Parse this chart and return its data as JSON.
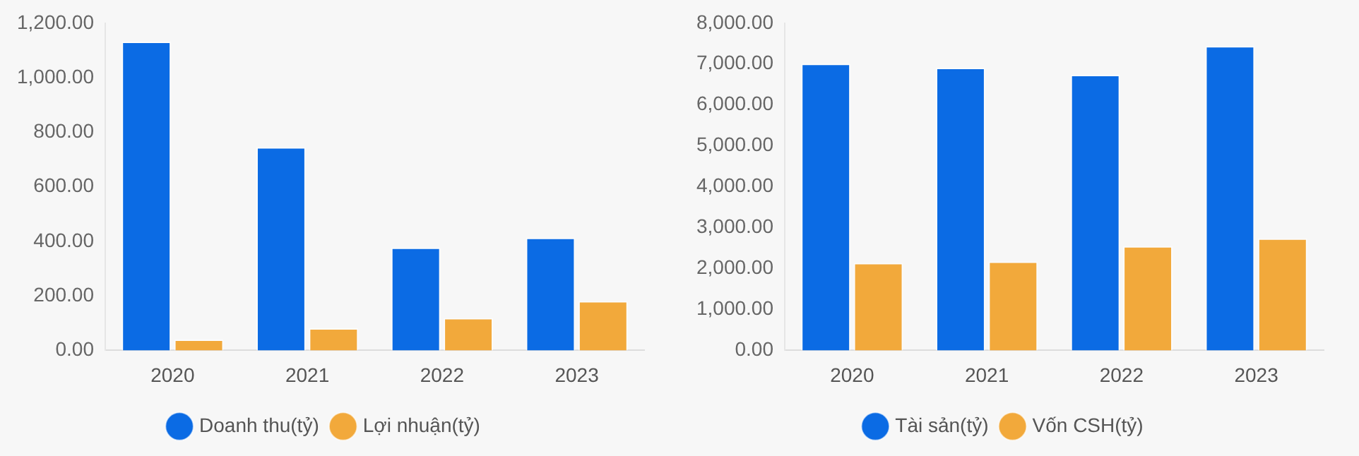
{
  "chart_data": [
    {
      "type": "bar",
      "categories": [
        "2020",
        "2021",
        "2022",
        "2023"
      ],
      "series": [
        {
          "name": "Doanh thu(tỷ)",
          "color": "#0b6be4",
          "values": [
            1132,
            745,
            377,
            413
          ]
        },
        {
          "name": "Lợi nhuận(tỷ)",
          "color": "#f2a93b",
          "values": [
            40,
            81,
            119,
            181
          ]
        }
      ],
      "ylim": [
        0,
        1200
      ],
      "yticks": [
        {
          "value": 0,
          "label": "0.00"
        },
        {
          "value": 200,
          "label": "200.00"
        },
        {
          "value": 400,
          "label": "400.00"
        },
        {
          "value": 600,
          "label": "600.00"
        },
        {
          "value": 800,
          "label": "800.00"
        },
        {
          "value": 1000,
          "label": "1,000.00"
        },
        {
          "value": 1200,
          "label": "1,200.00"
        }
      ],
      "grid": false,
      "legend": "bottom"
    },
    {
      "type": "bar",
      "categories": [
        "2020",
        "2021",
        "2022",
        "2023"
      ],
      "series": [
        {
          "name": "Tài sản(tỷ)",
          "color": "#0b6be4",
          "values": [
            7010,
            6910,
            6735,
            7440
          ]
        },
        {
          "name": "Vốn CSH(tỷ)",
          "color": "#f2a93b",
          "values": [
            2136,
            2173,
            2550,
            2739
          ]
        }
      ],
      "ylim": [
        0,
        8000
      ],
      "yticks": [
        {
          "value": 0,
          "label": "0.00"
        },
        {
          "value": 1000,
          "label": "1,000.00"
        },
        {
          "value": 2000,
          "label": "2,000.00"
        },
        {
          "value": 3000,
          "label": "3,000.00"
        },
        {
          "value": 4000,
          "label": "4,000.00"
        },
        {
          "value": 5000,
          "label": "5,000.00"
        },
        {
          "value": 6000,
          "label": "6,000.00"
        },
        {
          "value": 7000,
          "label": "7,000.00"
        },
        {
          "value": 8000,
          "label": "8,000.00"
        }
      ],
      "grid": false,
      "legend": "bottom"
    }
  ]
}
